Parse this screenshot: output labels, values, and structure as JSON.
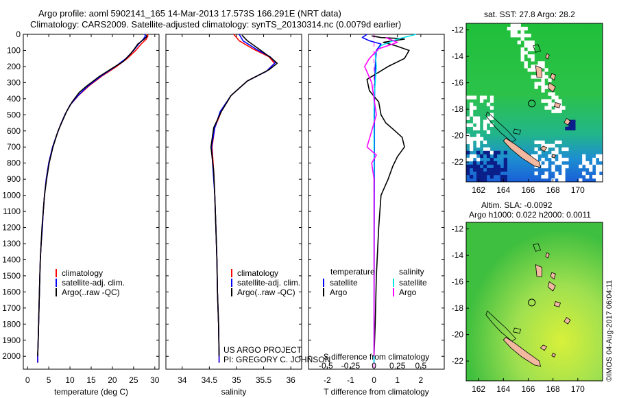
{
  "header": {
    "title_line1": "Argo profile: aoml 5902141_165 14-Mar-2013 17.573S 166.291E (NRT data)",
    "title_line2": "Climatology: CARS2009. Satellite-adjusted climatology: synTS_20130314.nc (0.0079d earlier)"
  },
  "colors": {
    "climatology": "#ff0000",
    "satellite": "#0000ff",
    "argo": "#000000",
    "cyan": "#00e5ee",
    "magenta": "#ff00ff"
  },
  "chart_data": [
    {
      "type": "line",
      "id": "temperature",
      "xlabel": "temperature (deg C)",
      "ylabel": "",
      "xlim": [
        -1,
        31
      ],
      "ylim": [
        2080,
        0
      ],
      "xticks": [
        0,
        5,
        10,
        15,
        20,
        25,
        30
      ],
      "yticks": [
        0,
        100,
        200,
        300,
        400,
        500,
        600,
        700,
        800,
        900,
        1000,
        1100,
        1200,
        1300,
        1400,
        1500,
        1600,
        1700,
        1800,
        1900,
        2000
      ],
      "series": [
        {
          "name": "climatology",
          "color": "#ff0000",
          "points": [
            [
              28.2,
              0
            ],
            [
              28.4,
              10
            ],
            [
              28.0,
              30
            ],
            [
              26.8,
              60
            ],
            [
              25.5,
              100
            ],
            [
              23.5,
              150
            ],
            [
              21.0,
              200
            ],
            [
              17.5,
              260
            ],
            [
              14.5,
              320
            ],
            [
              12.0,
              380
            ],
            [
              10.0,
              440
            ],
            [
              8.8,
              500
            ],
            [
              7.8,
              560
            ],
            [
              6.8,
              630
            ],
            [
              5.9,
              700
            ],
            [
              5.0,
              800
            ],
            [
              4.4,
              900
            ],
            [
              4.0,
              1000
            ],
            [
              3.7,
              1100
            ],
            [
              3.5,
              1200
            ],
            [
              3.2,
              1300
            ],
            [
              3.0,
              1400
            ],
            [
              2.9,
              1500
            ],
            [
              2.8,
              1600
            ],
            [
              2.7,
              1700
            ],
            [
              2.6,
              1800
            ],
            [
              2.5,
              1900
            ],
            [
              2.4,
              2000
            ],
            [
              2.4,
              2040
            ]
          ]
        },
        {
          "name": "satellite-adj. clim.",
          "color": "#0000ff",
          "points": [
            [
              27.6,
              0
            ],
            [
              27.8,
              10
            ],
            [
              27.3,
              30
            ],
            [
              26.2,
              60
            ],
            [
              25.0,
              100
            ],
            [
              23.2,
              150
            ],
            [
              20.7,
              200
            ],
            [
              17.3,
              260
            ],
            [
              14.3,
              320
            ],
            [
              11.9,
              380
            ],
            [
              10.0,
              440
            ],
            [
              8.8,
              500
            ],
            [
              7.8,
              560
            ],
            [
              6.8,
              630
            ],
            [
              5.9,
              700
            ],
            [
              5.0,
              800
            ],
            [
              4.4,
              900
            ],
            [
              4.0,
              1000
            ],
            [
              3.7,
              1100
            ],
            [
              3.5,
              1200
            ],
            [
              3.2,
              1300
            ],
            [
              3.0,
              1400
            ],
            [
              2.9,
              1500
            ],
            [
              2.8,
              1600
            ],
            [
              2.7,
              1700
            ],
            [
              2.6,
              1800
            ],
            [
              2.5,
              1900
            ],
            [
              2.4,
              2000
            ],
            [
              2.4,
              2040
            ]
          ]
        },
        {
          "name": "Argo(..raw -QC)",
          "color": "#000000",
          "points": [
            [
              28.0,
              5
            ],
            [
              28.1,
              15
            ],
            [
              27.5,
              30
            ],
            [
              26.0,
              60
            ],
            [
              25.2,
              90
            ],
            [
              24.0,
              130
            ],
            [
              22.5,
              170
            ],
            [
              20.0,
              210
            ],
            [
              17.0,
              260
            ],
            [
              14.0,
              320
            ],
            [
              12.2,
              360
            ],
            [
              10.5,
              420
            ],
            [
              9.2,
              480
            ],
            [
              8.2,
              540
            ],
            [
              7.2,
              600
            ],
            [
              6.0,
              700
            ],
            [
              5.1,
              800
            ],
            [
              4.5,
              900
            ],
            [
              4.0,
              1000
            ],
            [
              3.7,
              1100
            ],
            [
              3.4,
              1200
            ],
            [
              3.2,
              1300
            ],
            [
              3.0,
              1400
            ],
            [
              2.9,
              1500
            ],
            [
              2.8,
              1600
            ],
            [
              2.7,
              1700
            ],
            [
              2.6,
              1800
            ],
            [
              2.5,
              1900
            ],
            [
              2.4,
              2000
            ]
          ]
        }
      ],
      "legend": {
        "position": "bottom-right",
        "items": [
          "climatology",
          "satellite-adj. clim.",
          "Argo(..raw -QC)"
        ]
      }
    },
    {
      "type": "line",
      "id": "salinity",
      "xlabel": "salinity",
      "xlim": [
        33.7,
        36.2
      ],
      "ylim": [
        2080,
        0
      ],
      "xticks": [
        34,
        34.5,
        35,
        35.5,
        36
      ],
      "series": [
        {
          "name": "climatology",
          "color": "#ff0000",
          "points": [
            [
              34.95,
              0
            ],
            [
              35.05,
              40
            ],
            [
              35.3,
              90
            ],
            [
              35.6,
              140
            ],
            [
              35.7,
              180
            ],
            [
              35.55,
              230
            ],
            [
              35.2,
              290
            ],
            [
              34.9,
              380
            ],
            [
              34.72,
              480
            ],
            [
              34.6,
              580
            ],
            [
              34.55,
              700
            ],
            [
              34.58,
              850
            ],
            [
              34.6,
              1000
            ],
            [
              34.62,
              1200
            ],
            [
              34.64,
              1400
            ],
            [
              34.65,
              1600
            ],
            [
              34.67,
              1800
            ],
            [
              34.68,
              2000
            ],
            [
              34.68,
              2040
            ]
          ]
        },
        {
          "name": "satellite-adj. clim.",
          "color": "#0000ff",
          "points": [
            [
              35.05,
              0
            ],
            [
              35.12,
              40
            ],
            [
              35.35,
              90
            ],
            [
              35.62,
              140
            ],
            [
              35.72,
              175
            ],
            [
              35.55,
              230
            ],
            [
              35.2,
              290
            ],
            [
              34.9,
              380
            ],
            [
              34.7,
              480
            ],
            [
              34.6,
              580
            ],
            [
              34.54,
              700
            ],
            [
              34.57,
              850
            ],
            [
              34.6,
              1000
            ],
            [
              34.62,
              1200
            ],
            [
              34.64,
              1400
            ],
            [
              34.65,
              1600
            ],
            [
              34.67,
              1800
            ],
            [
              34.68,
              2000
            ],
            [
              34.68,
              2040
            ]
          ]
        },
        {
          "name": "Argo(..raw -QC)",
          "color": "#000000",
          "points": [
            [
              35.1,
              5
            ],
            [
              35.2,
              40
            ],
            [
              35.45,
              100
            ],
            [
              35.65,
              150
            ],
            [
              35.75,
              180
            ],
            [
              35.6,
              220
            ],
            [
              35.2,
              290
            ],
            [
              34.9,
              380
            ],
            [
              34.72,
              480
            ],
            [
              34.58,
              580
            ],
            [
              34.53,
              700
            ],
            [
              34.58,
              850
            ],
            [
              34.6,
              1000
            ],
            [
              34.62,
              1200
            ],
            [
              34.64,
              1400
            ],
            [
              34.65,
              1600
            ],
            [
              34.67,
              1800
            ],
            [
              34.68,
              2000
            ]
          ]
        }
      ],
      "legend": {
        "position": "bottom-right",
        "items": [
          "climatology",
          "satellite-adj. clim.",
          "Argo(..raw -QC)"
        ]
      },
      "annotation": {
        "line1": "US ARGO PROJECT",
        "line2": "PI: GREGORY C. JOHNSON"
      }
    },
    {
      "type": "line",
      "id": "difference",
      "xlabel": "T difference from climatology",
      "xlabel_top": "S difference from climatology",
      "xlim": [
        -2.8,
        3.0
      ],
      "ylim": [
        2080,
        0
      ],
      "xticks": [
        -2,
        -1,
        0,
        1,
        2
      ],
      "xticks_s": [
        "-0.5",
        "-0.25",
        "0",
        "0.25",
        "0.5"
      ],
      "series": [
        {
          "name": "temperature satellite",
          "color": "#0000ff",
          "points": [
            [
              -0.3,
              0
            ],
            [
              -0.5,
              20
            ],
            [
              -0.2,
              40
            ],
            [
              0.3,
              60
            ],
            [
              0.1,
              100
            ],
            [
              0.05,
              200
            ],
            [
              0.02,
              400
            ],
            [
              0,
              2040
            ]
          ]
        },
        {
          "name": "temperature Argo",
          "color": "#000000",
          "points": [
            [
              -0.1,
              10
            ],
            [
              0.3,
              20
            ],
            [
              1.0,
              25
            ],
            [
              1.3,
              30
            ],
            [
              0.4,
              50
            ],
            [
              0.9,
              70
            ],
            [
              1.5,
              100
            ],
            [
              1.3,
              150
            ],
            [
              0.6,
              200
            ],
            [
              -0.3,
              280
            ],
            [
              -0.2,
              350
            ],
            [
              0.2,
              420
            ],
            [
              0.3,
              500
            ],
            [
              0.5,
              550
            ],
            [
              0.9,
              600
            ],
            [
              1.2,
              640
            ],
            [
              1.3,
              700
            ],
            [
              1.0,
              760
            ],
            [
              0.8,
              820
            ],
            [
              0.6,
              900
            ],
            [
              0.3,
              1000
            ],
            [
              0.2,
              1200
            ],
            [
              0.1,
              1500
            ],
            [
              0.05,
              1800
            ],
            [
              0,
              2000
            ]
          ]
        },
        {
          "name": "salinity satellite",
          "color": "#00e5ee",
          "points": [
            [
              1.8,
              0
            ],
            [
              1.0,
              30
            ],
            [
              0.3,
              70
            ],
            [
              0.05,
              120
            ],
            [
              0.1,
              200
            ],
            [
              0,
              400
            ],
            [
              0,
              2040
            ]
          ]
        },
        {
          "name": "salinity Argo",
          "color": "#ff00ff",
          "points": [
            [
              0.5,
              20
            ],
            [
              1.0,
              50
            ],
            [
              0.2,
              90
            ],
            [
              -0.2,
              150
            ],
            [
              -0.4,
              200
            ],
            [
              -0.1,
              300
            ],
            [
              0,
              400
            ],
            [
              0.1,
              500
            ],
            [
              -0.1,
              600
            ],
            [
              -0.3,
              700
            ],
            [
              0.1,
              750
            ],
            [
              -0.1,
              800
            ],
            [
              0,
              900
            ],
            [
              0,
              2000
            ]
          ]
        }
      ],
      "legend": {
        "position": "bottom",
        "left_title": "temperature",
        "right_title": "salinity",
        "left_items": [
          "satellite",
          "Argo"
        ],
        "right_items": [
          "satellite",
          "Argo"
        ]
      }
    },
    {
      "type": "heatmap",
      "id": "sst-map",
      "title": "sat. SST: 27.8 Argo: 28.2",
      "xlim": [
        161,
        172
      ],
      "ylim": [
        -23.5,
        -11.5
      ],
      "xticks": [
        162,
        164,
        166,
        168,
        170
      ],
      "yticks": [
        -12,
        -14,
        -16,
        -18,
        -20,
        -22
      ],
      "float_position": [
        166.291,
        -17.573
      ]
    },
    {
      "type": "heatmap",
      "id": "sla-map",
      "title_line1": "Altim. SLA: -0.0092",
      "title_line2": "Argo h1000: 0.022 h2000: 0.0011",
      "xlim": [
        161,
        172
      ],
      "ylim": [
        -23.5,
        -11.5
      ],
      "xticks": [
        162,
        164,
        166,
        168,
        170
      ],
      "yticks": [
        -12,
        -14,
        -16,
        -18,
        -20,
        -22
      ],
      "float_position": [
        166.291,
        -17.573
      ]
    }
  ],
  "watermark": "©IMOS 04-Aug-2017 06:04:11"
}
